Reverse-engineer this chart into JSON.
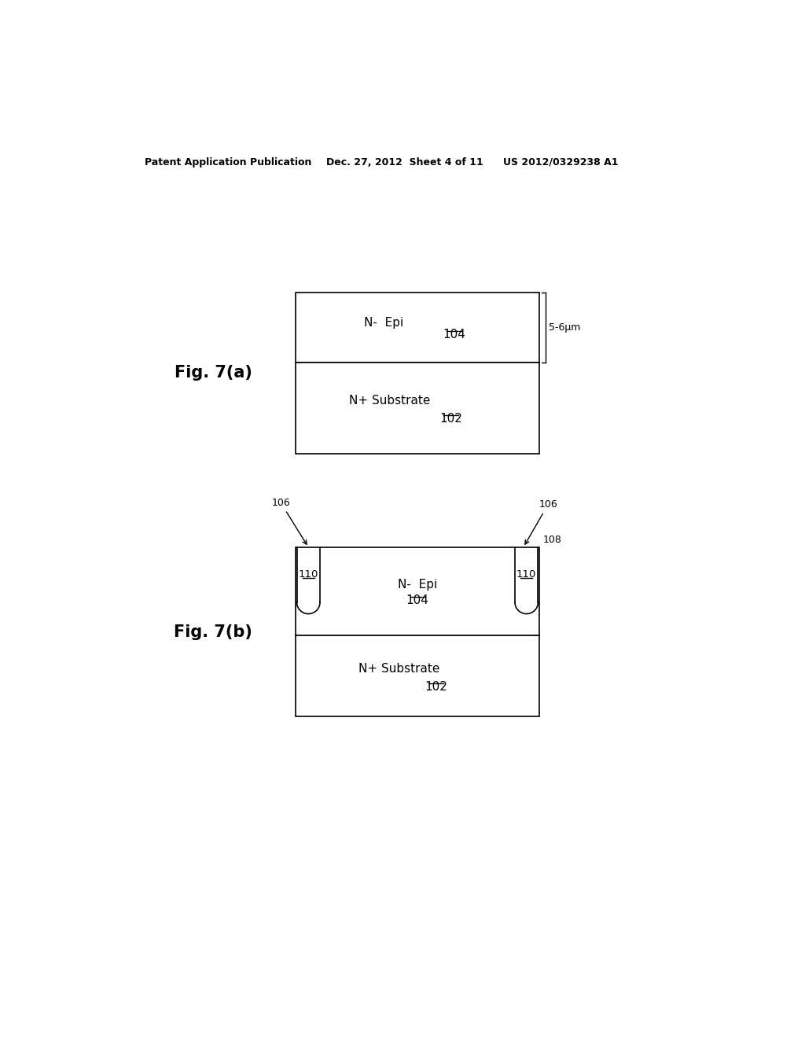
{
  "header_left": "Patent Application Publication",
  "header_mid": "Dec. 27, 2012  Sheet 4 of 11",
  "header_right": "US 2012/0329238 A1",
  "fig_a_label": "Fig. 7(a)",
  "fig_b_label": "Fig. 7(b)",
  "fig_a": {
    "epi_label": "N-  Epi",
    "epi_ref": "104",
    "sub_label": "N+ Substrate",
    "sub_ref": "102",
    "dim_label": "5-6μm"
  },
  "fig_b": {
    "epi_label": "N-  Epi",
    "epi_ref": "104",
    "sub_label": "N+ Substrate",
    "sub_ref": "102",
    "ref106_left": "106",
    "ref106_right": "106",
    "ref108": "108",
    "ref110_left": "110",
    "ref110_right": "110"
  },
  "bg_color": "#ffffff",
  "line_color": "#000000",
  "text_color": "#000000"
}
